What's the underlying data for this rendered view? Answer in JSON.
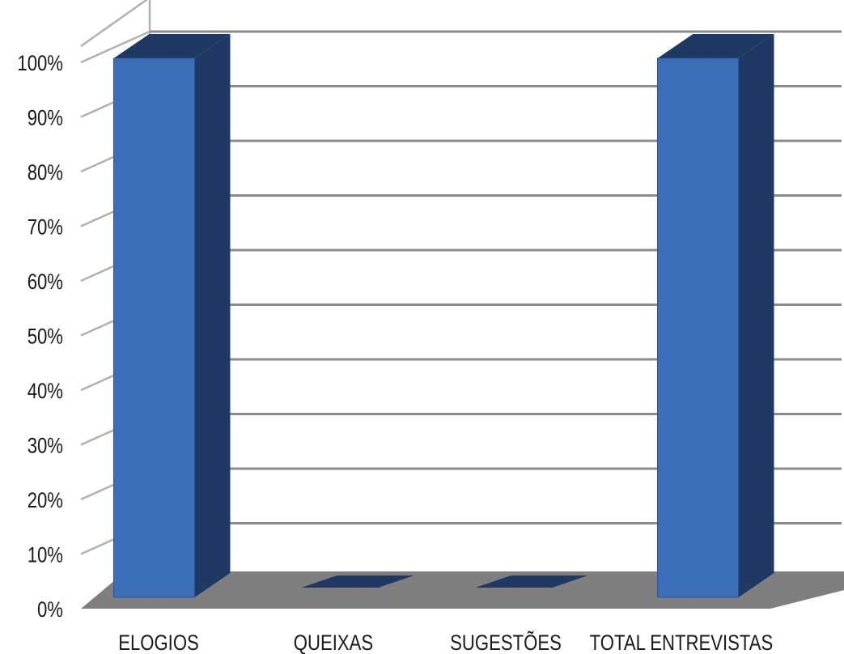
{
  "chart_data": {
    "type": "bar",
    "title": "",
    "categories": [
      "ELOGIOS",
      "QUEIXAS",
      "SUGESTÕES",
      "TOTAL ENTREVISTAS"
    ],
    "values": [
      100,
      0,
      0,
      100
    ],
    "value_format": "percent",
    "ylim": [
      0,
      100
    ],
    "yticks": [
      0,
      10,
      20,
      30,
      40,
      50,
      60,
      70,
      80,
      90,
      100
    ],
    "ytick_labels": [
      "0%",
      "10%",
      "20%",
      "30%",
      "40%",
      "50%",
      "60%",
      "70%",
      "80%",
      "90%",
      "100%"
    ],
    "xlabel": "",
    "ylabel": "",
    "grid": true,
    "three_d": true,
    "colors": {
      "bar_front": "#3a6fb8",
      "bar_side": "#1f3864",
      "bar_top": "#1f3864",
      "floor": "#7f7f7f",
      "grid": "#8c8c8c",
      "wall": "#b0b0b0"
    }
  }
}
